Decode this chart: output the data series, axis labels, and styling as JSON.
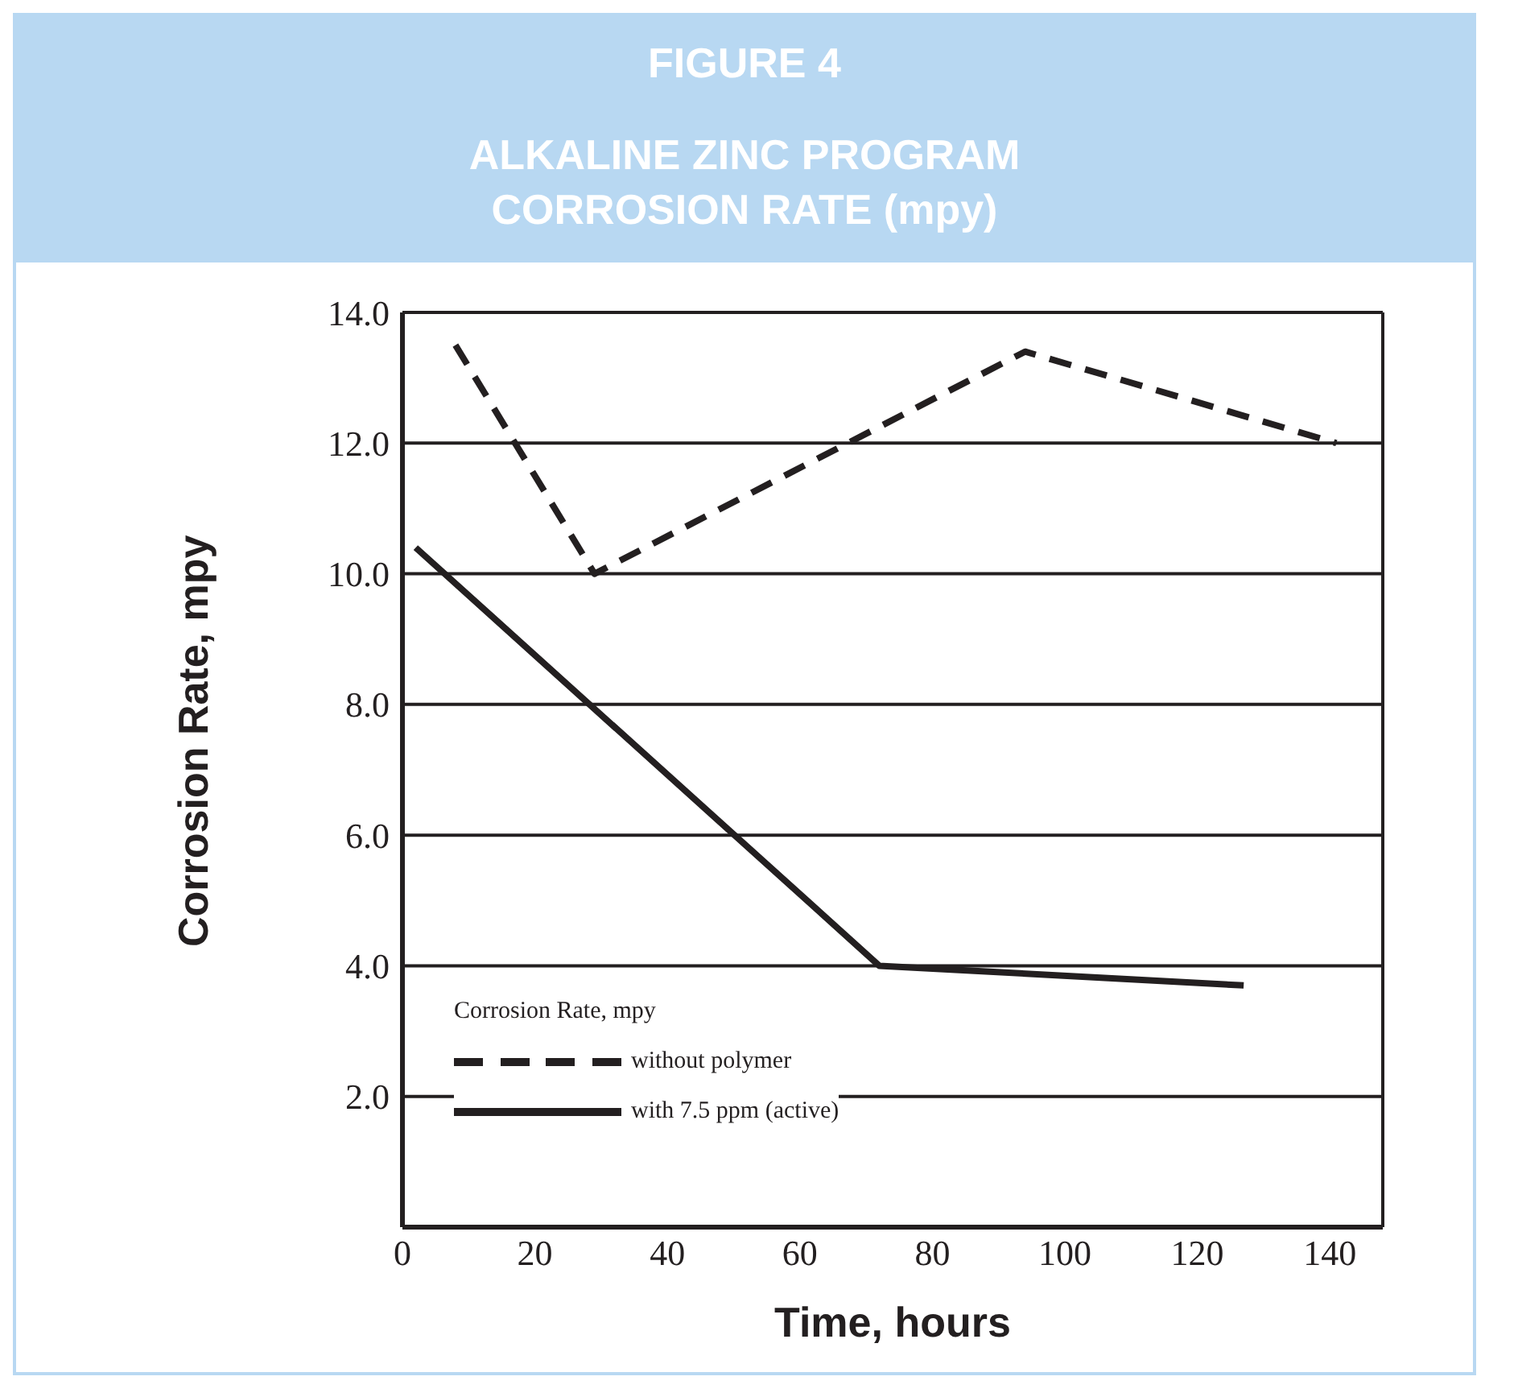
{
  "chart_data": {
    "type": "line",
    "title": "FIGURE 4",
    "subtitle": "ALKALINE ZINC PROGRAM CORROSION RATE (mpy)",
    "xlabel": "Time, hours",
    "ylabel": "Corrosion Rate, mpy",
    "legend_title": "Corrosion Rate, mpy",
    "legend": "bottom left",
    "grid": "y",
    "marker": "none",
    "xlim": [
      0,
      148
    ],
    "xticks": [
      0,
      20,
      40,
      60,
      80,
      100,
      120,
      140
    ],
    "ylim": [
      0,
      14
    ],
    "yticks": [
      {
        "value": 2,
        "label": "2.0"
      },
      {
        "value": 4,
        "label": "4.0"
      },
      {
        "value": 6,
        "label": "6.0"
      },
      {
        "value": 8,
        "label": "8.0"
      },
      {
        "value": 10,
        "label": "10.0"
      },
      {
        "value": 12,
        "label": "12.0"
      },
      {
        "value": 14,
        "label": "14.0"
      }
    ],
    "series": [
      {
        "name": "without polymer",
        "color": "#231f20",
        "line_style": "dashed",
        "x": [
          8,
          29,
          94,
          141
        ],
        "values": [
          13.5,
          10.0,
          13.4,
          12.0
        ]
      },
      {
        "name": "with 7.5 ppm (active)",
        "color": "#231f20",
        "line_style": "solid",
        "x": [
          2,
          72,
          127
        ],
        "values": [
          10.4,
          4.0,
          3.7
        ]
      }
    ]
  }
}
